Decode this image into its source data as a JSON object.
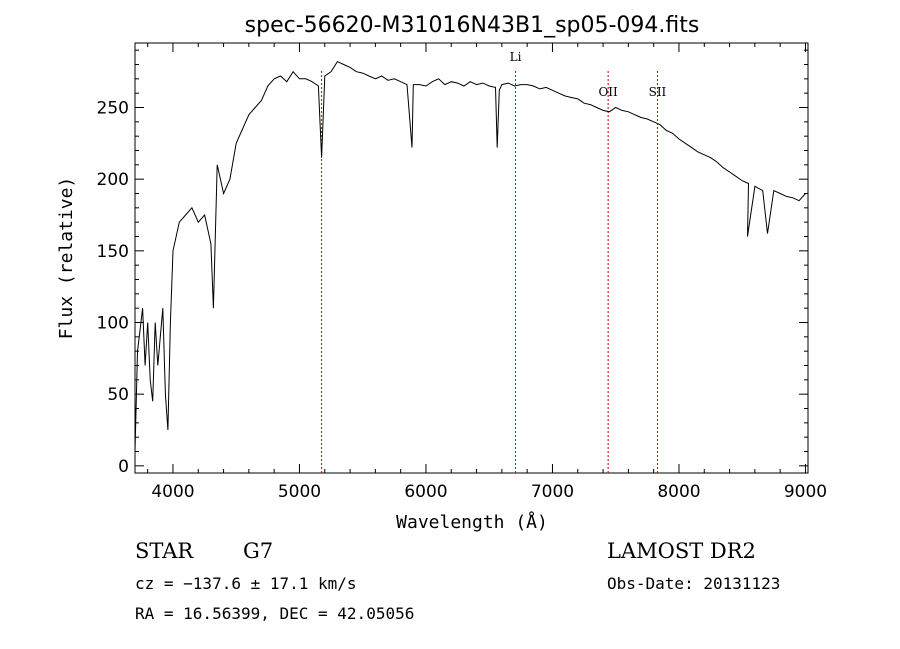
{
  "chart_data": {
    "type": "line",
    "title": "spec-56620-M31016N43B1_sp05-094.fits",
    "xlabel": "Wavelength (Å)",
    "ylabel": "Flux (relative)",
    "xlim": [
      3700,
      9020
    ],
    "ylim": [
      -5,
      295
    ],
    "x_ticks": [
      4000,
      5000,
      6000,
      7000,
      8000,
      9000
    ],
    "y_ticks": [
      0,
      50,
      100,
      150,
      200,
      250
    ],
    "grid": false,
    "line_color": "#000000",
    "marker_color": "#cc0000",
    "spectral_lines": [
      {
        "name": "",
        "wavelength": 5175
      },
      {
        "name": "Li",
        "wavelength": 6708
      },
      {
        "name": "OII",
        "wavelength": 7440
      },
      {
        "name": "SII",
        "wavelength": 7830
      }
    ],
    "series": [
      {
        "x": [
          3700,
          3720,
          3740,
          3760,
          3780,
          3800,
          3820,
          3840,
          3860,
          3880,
          3900,
          3920,
          3940,
          3960,
          3980,
          4000,
          4050,
          4100,
          4150,
          4200,
          4250,
          4300,
          4320,
          4350,
          4400,
          4450,
          4500,
          4550,
          4600,
          4650,
          4700,
          4750,
          4800,
          4850,
          4900,
          4950,
          5000,
          5050,
          5100,
          5150,
          5175,
          5200,
          5250,
          5300,
          5350,
          5400,
          5450,
          5500,
          5550,
          5600,
          5650,
          5700,
          5750,
          5800,
          5850,
          5890,
          5900,
          5950,
          6000,
          6050,
          6100,
          6150,
          6200,
          6250,
          6300,
          6350,
          6400,
          6450,
          6500,
          6550,
          6563,
          6580,
          6600,
          6650,
          6700,
          6750,
          6800,
          6850,
          6900,
          6950,
          7000,
          7050,
          7100,
          7150,
          7200,
          7250,
          7300,
          7350,
          7400,
          7450,
          7500,
          7550,
          7600,
          7650,
          7700,
          7750,
          7800,
          7850,
          7900,
          7950,
          8000,
          8050,
          8100,
          8150,
          8200,
          8250,
          8300,
          8350,
          8400,
          8450,
          8498,
          8550,
          8542,
          8600,
          8662,
          8700,
          8750,
          8800,
          8850,
          8900,
          8950,
          9000
        ],
        "y": [
          10,
          80,
          95,
          110,
          70,
          100,
          60,
          45,
          100,
          70,
          90,
          110,
          50,
          25,
          100,
          150,
          170,
          175,
          180,
          170,
          175,
          155,
          110,
          210,
          190,
          200,
          225,
          235,
          245,
          250,
          255,
          265,
          270,
          272,
          268,
          275,
          270,
          270,
          268,
          265,
          215,
          272,
          275,
          282,
          280,
          278,
          275,
          274,
          272,
          270,
          272,
          269,
          270,
          268,
          266,
          222,
          266,
          266,
          265,
          268,
          270,
          266,
          268,
          267,
          265,
          268,
          266,
          267,
          265,
          264,
          222,
          262,
          266,
          267,
          265,
          266,
          266,
          265,
          263,
          264,
          262,
          260,
          258,
          257,
          256,
          253,
          252,
          250,
          248,
          247,
          250,
          248,
          247,
          245,
          243,
          242,
          240,
          238,
          234,
          232,
          228,
          225,
          222,
          219,
          217,
          215,
          212,
          208,
          205,
          202,
          199,
          197,
          160,
          195,
          192,
          162,
          192,
          190,
          188,
          187,
          185,
          190
        ]
      }
    ]
  },
  "info": {
    "object_type": "STAR",
    "subclass": "G7",
    "survey": "LAMOST DR2",
    "cz": "cz = −137.6 ± 17.1 km/s",
    "obs_date": "Obs-Date: 20131123",
    "coords": "RA =  16.56399, DEC =  42.05056"
  }
}
